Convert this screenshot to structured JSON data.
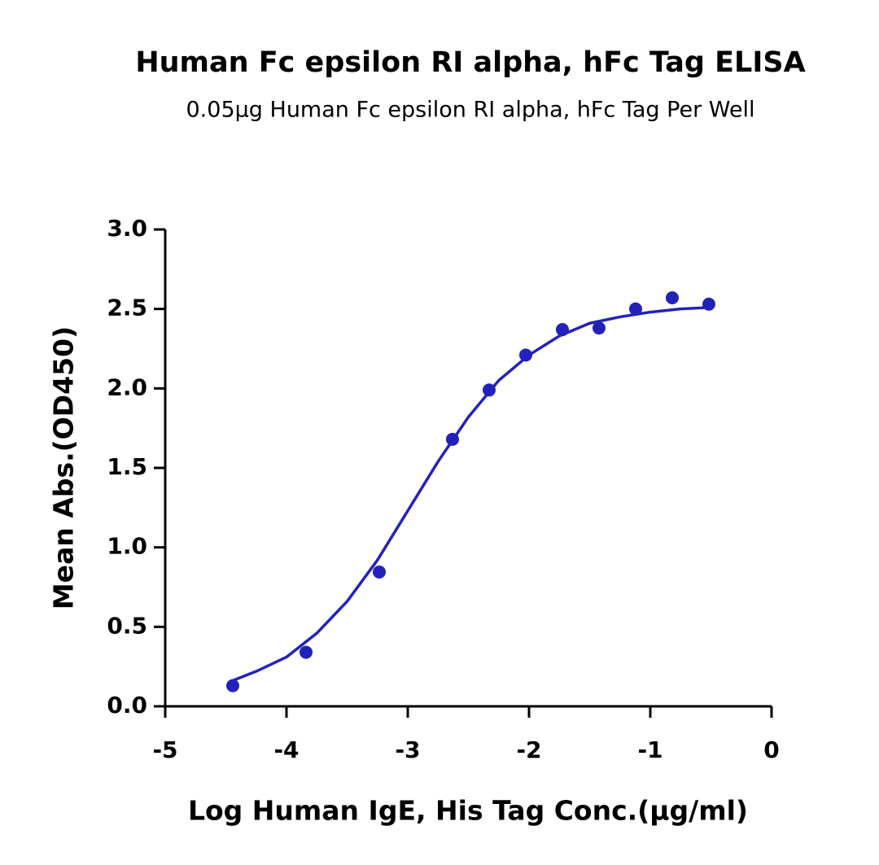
{
  "chart_data": {
    "type": "scatter",
    "title": "Human Fc epsilon RI alpha, hFc Tag ELISA",
    "subtitle": "0.05μg Human Fc epsilon RI alpha, hFc Tag Per Well",
    "x_label": "Log Human IgE, His Tag Conc.(μg/ml)",
    "y_label": "Mean Abs.(OD450)",
    "xlim": [
      -5,
      0
    ],
    "xticks": [
      -5,
      -4,
      -3,
      -2,
      -1,
      0
    ],
    "ylim": [
      0,
      3
    ],
    "yticks": [
      {
        "value": 0,
        "label": "0.0"
      },
      {
        "value": 0.5,
        "label": "0.5"
      },
      {
        "value": 1,
        "label": "1.0"
      },
      {
        "value": 1.5,
        "label": "1.5"
      },
      {
        "value": 2,
        "label": "2.0"
      },
      {
        "value": 2.5,
        "label": "2.5"
      },
      {
        "value": 3,
        "label": "3.0"
      }
    ],
    "series": [
      {
        "type": "scatter",
        "color": "#2222bb",
        "x": [
          -4.443,
          -3.839,
          -3.235,
          -2.631,
          -2.329,
          -2.027,
          -1.725,
          -1.423,
          -1.121,
          -0.819,
          -0.517
        ],
        "values": [
          0.13,
          0.34,
          0.845,
          1.68,
          1.99,
          2.21,
          2.37,
          2.38,
          2.5,
          2.57,
          2.53
        ]
      },
      {
        "type": "line",
        "color": "#2222bb",
        "x": [
          -4.45,
          -4.25,
          -4.0,
          -3.75,
          -3.5,
          -3.25,
          -3.0,
          -2.75,
          -2.5,
          -2.25,
          -2.0,
          -1.75,
          -1.5,
          -1.25,
          -1.0,
          -0.75,
          -0.5
        ],
        "values": [
          0.16,
          0.22,
          0.31,
          0.46,
          0.66,
          0.92,
          1.23,
          1.54,
          1.82,
          2.05,
          2.21,
          2.33,
          2.41,
          2.45,
          2.48,
          2.5,
          2.51
        ]
      }
    ]
  }
}
